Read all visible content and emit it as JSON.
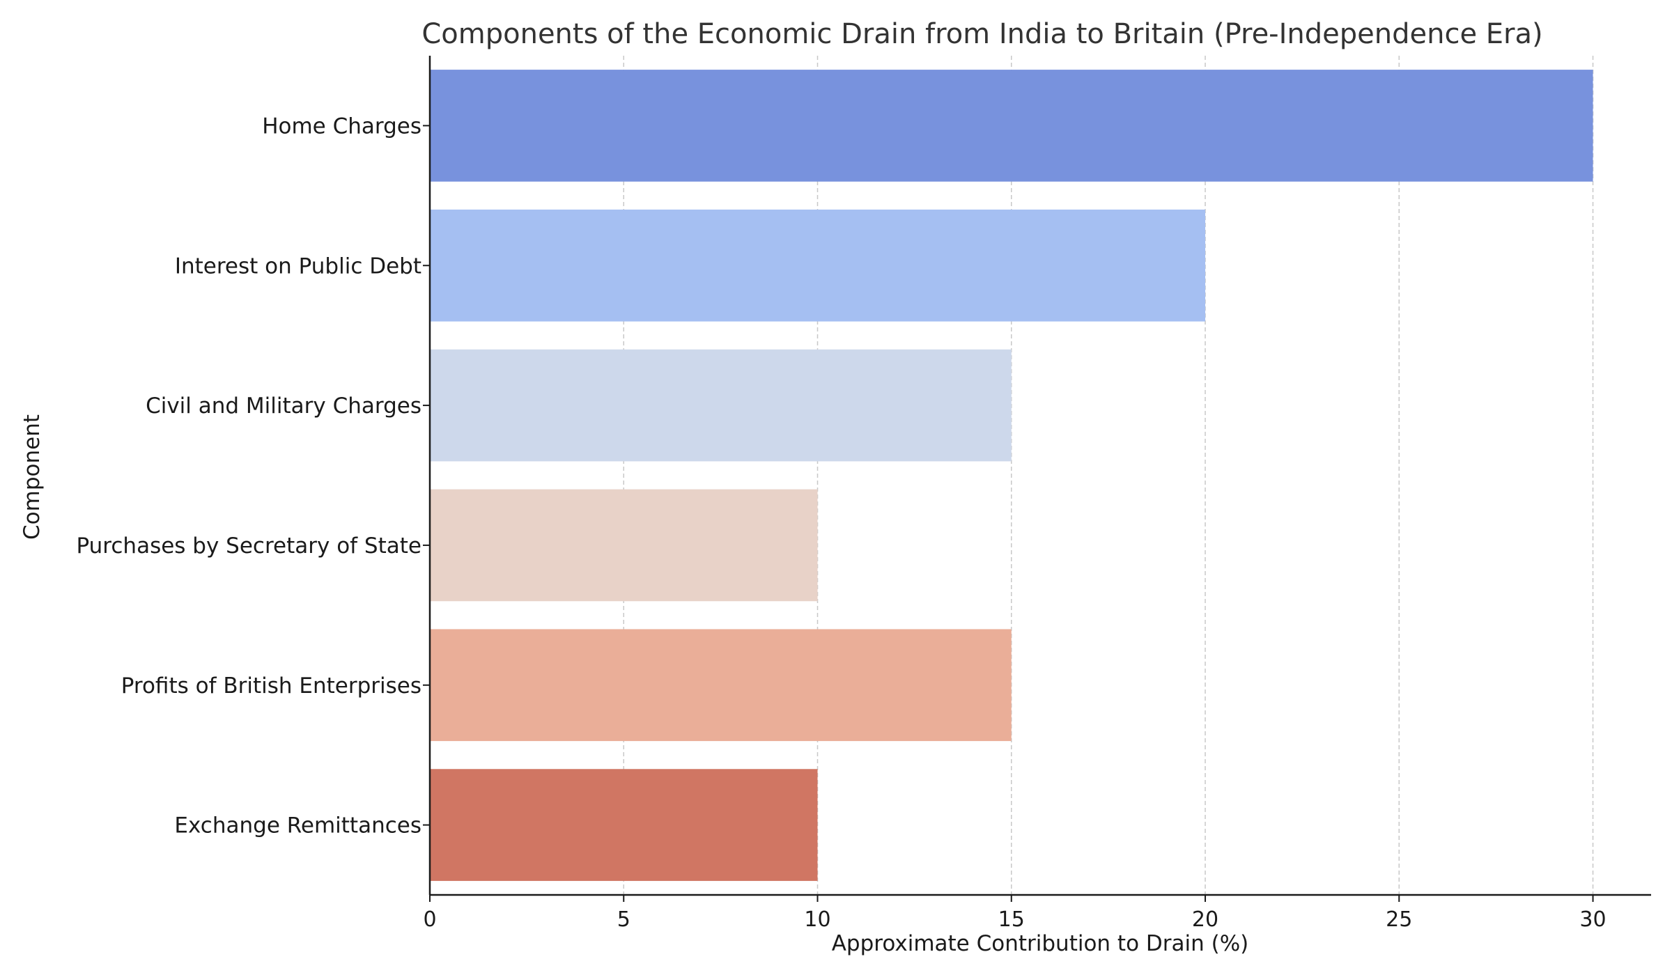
{
  "chart_data": {
    "type": "bar",
    "orientation": "horizontal",
    "title": "Components of the Economic Drain from India to Britain (Pre-Independence Era)",
    "xlabel": "Approximate Contribution to Drain (%)",
    "ylabel": "Component",
    "xlim": [
      0,
      31.5
    ],
    "xticks": [
      0,
      5,
      10,
      15,
      20,
      25,
      30
    ],
    "grid": "x-axis dashed",
    "categories": [
      "Home Charges",
      "Interest on Public Debt",
      "Civil and Military Charges",
      "Purchases by Secretary of State",
      "Profits of British Enterprises",
      "Exchange Remittances"
    ],
    "values": [
      30,
      20,
      15,
      10,
      15,
      10
    ],
    "colors": [
      "#7892dd",
      "#a5bff2",
      "#cdd8eb",
      "#e8d2c8",
      "#eaae98",
      "#d07663"
    ]
  }
}
